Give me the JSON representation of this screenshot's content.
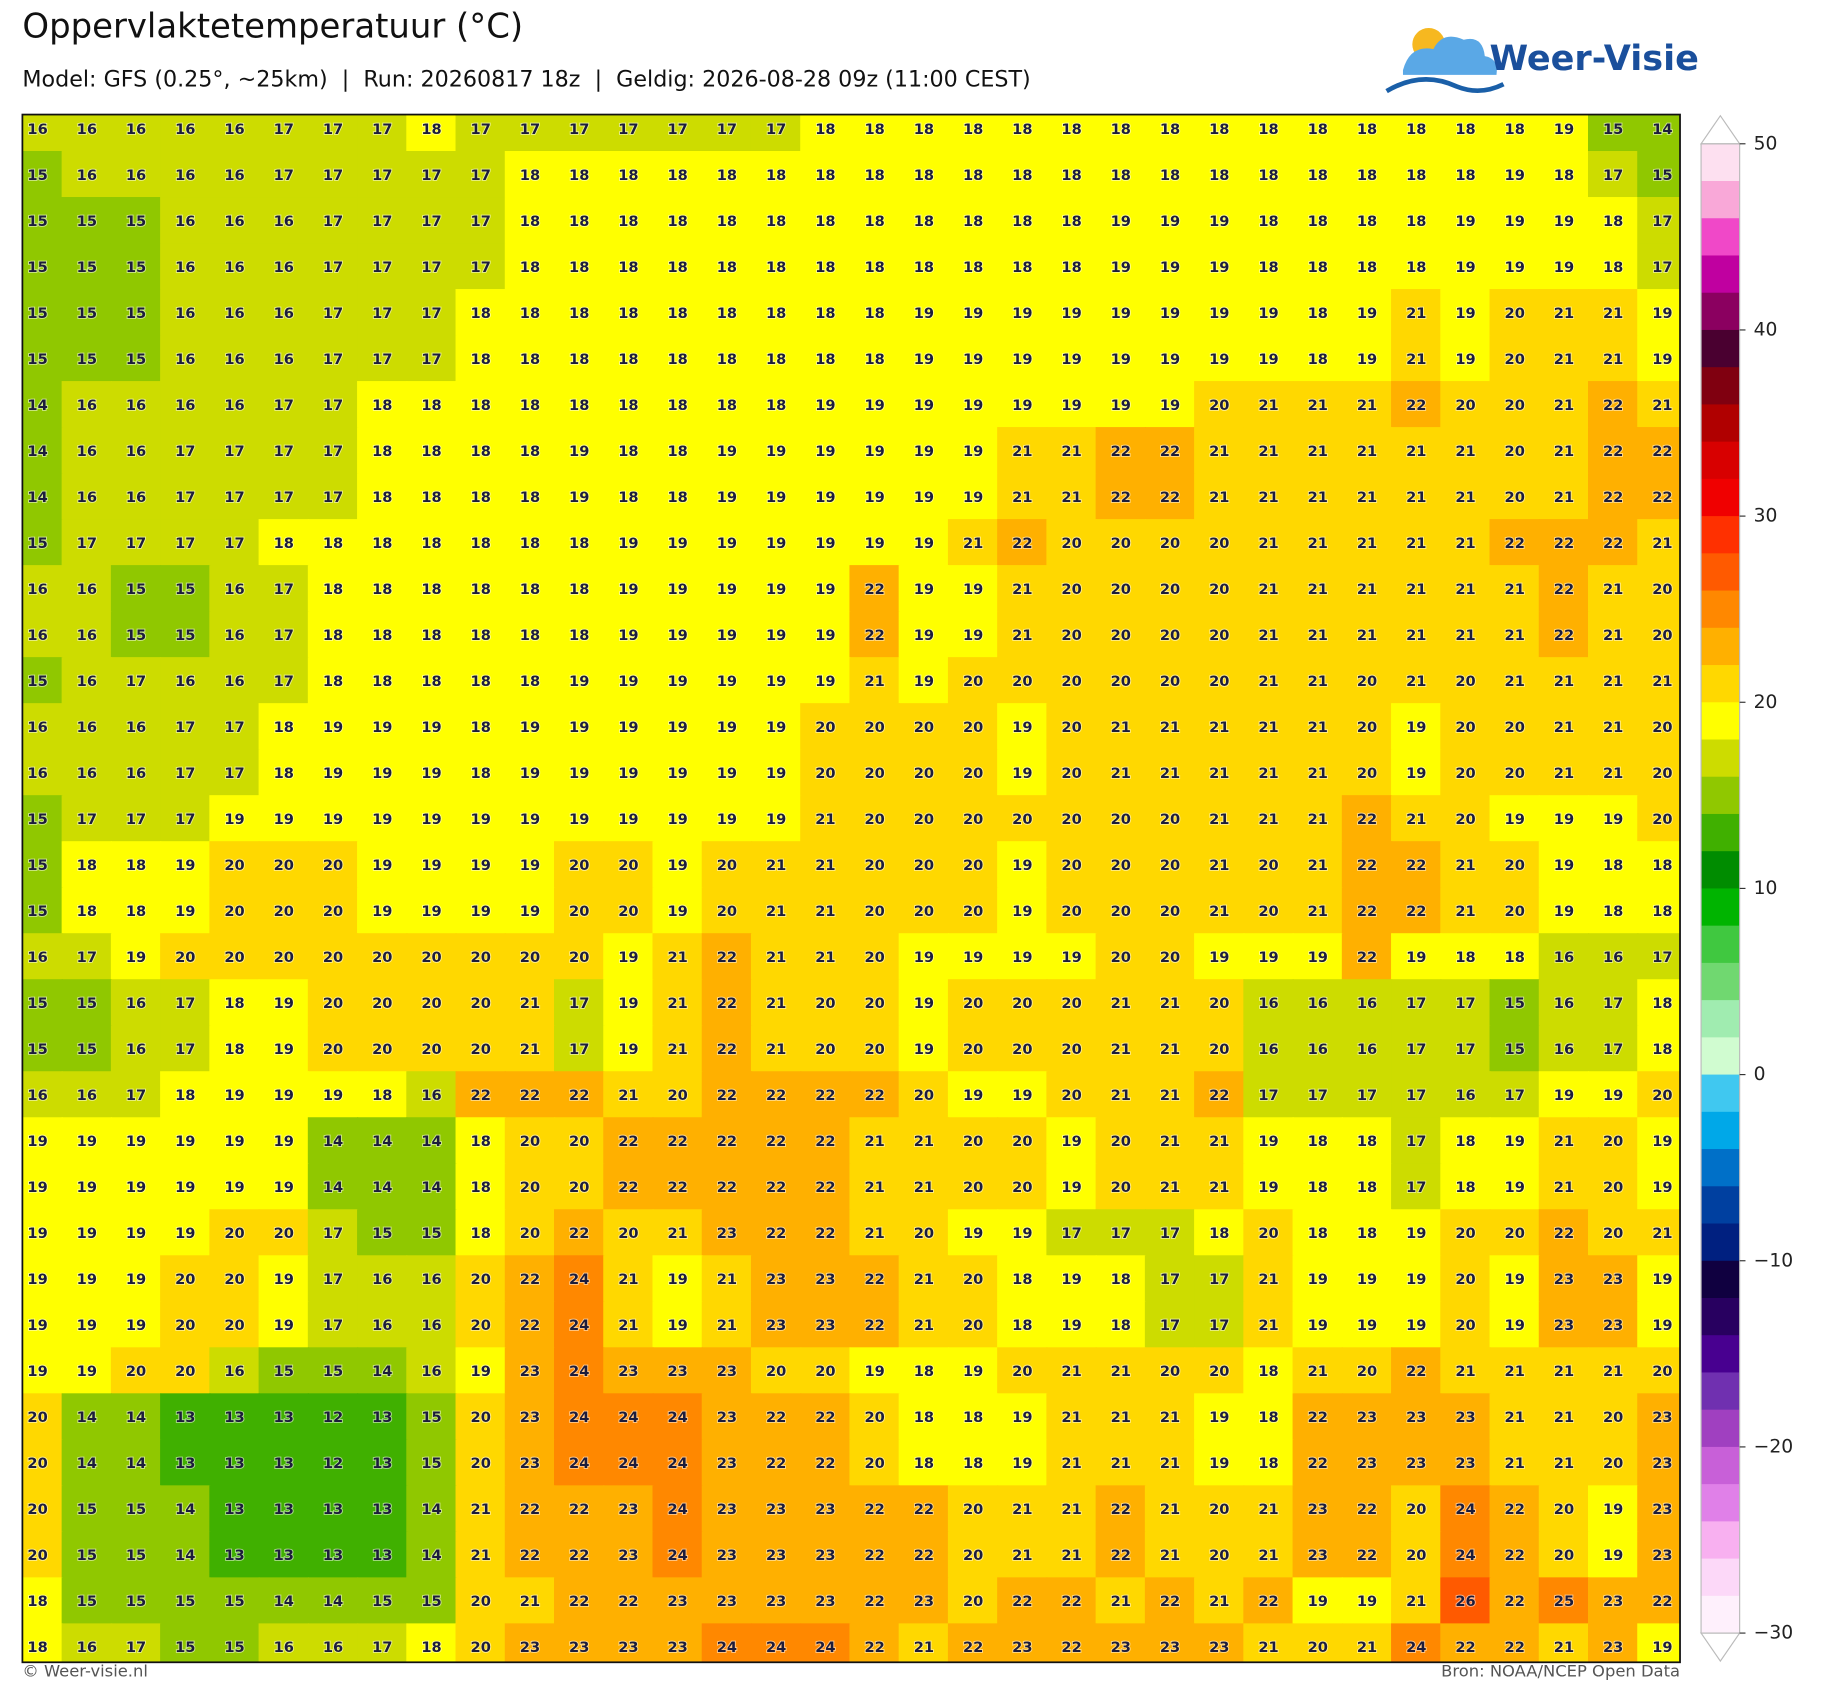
{
  "header": {
    "title": "Oppervlaktetemperatuur (°C)",
    "subtitle": "Model: GFS (0.25°, ~25km)  |  Run: 20260817 18z  |  Geldig: 2026-08-28 09z (11:00 CEST)",
    "logo": "Weer-Visie"
  },
  "map": {
    "values": [
      [
        16,
        16,
        16,
        16,
        16,
        17,
        17,
        17,
        18,
        17,
        17,
        17,
        17,
        17,
        17,
        17,
        18,
        18,
        18,
        18,
        18,
        18,
        18,
        18,
        18,
        18,
        18,
        18,
        18,
        18,
        18,
        19,
        15,
        14
      ],
      [
        15,
        16,
        16,
        16,
        16,
        17,
        17,
        17,
        17,
        17,
        18,
        18,
        18,
        18,
        18,
        18,
        18,
        18,
        18,
        18,
        18,
        18,
        18,
        18,
        18,
        18,
        18,
        18,
        18,
        18,
        19,
        18,
        17,
        15
      ],
      [
        15,
        15,
        15,
        16,
        16,
        16,
        17,
        17,
        17,
        17,
        18,
        18,
        18,
        18,
        18,
        18,
        18,
        18,
        18,
        18,
        18,
        18,
        19,
        19,
        19,
        18,
        18,
        18,
        18,
        19,
        19,
        19,
        18,
        17
      ],
      [
        15,
        15,
        15,
        16,
        16,
        16,
        17,
        17,
        17,
        17,
        18,
        18,
        18,
        18,
        18,
        18,
        18,
        18,
        18,
        18,
        18,
        18,
        19,
        19,
        19,
        18,
        18,
        18,
        18,
        19,
        19,
        19,
        18,
        17
      ],
      [
        15,
        15,
        15,
        16,
        16,
        16,
        17,
        17,
        17,
        18,
        18,
        18,
        18,
        18,
        18,
        18,
        18,
        18,
        19,
        19,
        19,
        19,
        19,
        19,
        19,
        19,
        18,
        19,
        21,
        19,
        20,
        21,
        21,
        19
      ],
      [
        15,
        15,
        15,
        16,
        16,
        16,
        17,
        17,
        17,
        18,
        18,
        18,
        18,
        18,
        18,
        18,
        18,
        18,
        19,
        19,
        19,
        19,
        19,
        19,
        19,
        19,
        18,
        19,
        21,
        19,
        20,
        21,
        21,
        19
      ],
      [
        14,
        16,
        16,
        16,
        16,
        17,
        17,
        18,
        18,
        18,
        18,
        18,
        18,
        18,
        18,
        18,
        19,
        19,
        19,
        19,
        19,
        19,
        19,
        19,
        20,
        21,
        21,
        21,
        22,
        20,
        20,
        21,
        22,
        21
      ],
      [
        14,
        16,
        16,
        17,
        17,
        17,
        17,
        18,
        18,
        18,
        18,
        19,
        18,
        18,
        19,
        19,
        19,
        19,
        19,
        19,
        21,
        21,
        22,
        22,
        21,
        21,
        21,
        21,
        21,
        21,
        20,
        21,
        22,
        22
      ],
      [
        14,
        16,
        16,
        17,
        17,
        17,
        17,
        18,
        18,
        18,
        18,
        19,
        18,
        18,
        19,
        19,
        19,
        19,
        19,
        19,
        21,
        21,
        22,
        22,
        21,
        21,
        21,
        21,
        21,
        21,
        20,
        21,
        22,
        22
      ],
      [
        15,
        17,
        17,
        17,
        17,
        18,
        18,
        18,
        18,
        18,
        18,
        18,
        19,
        19,
        19,
        19,
        19,
        19,
        19,
        21,
        22,
        20,
        20,
        20,
        20,
        21,
        21,
        21,
        21,
        21,
        22,
        22,
        22,
        21
      ],
      [
        16,
        16,
        15,
        15,
        16,
        17,
        18,
        18,
        18,
        18,
        18,
        18,
        19,
        19,
        19,
        19,
        19,
        22,
        19,
        19,
        21,
        20,
        20,
        20,
        20,
        21,
        21,
        21,
        21,
        21,
        21,
        22,
        21,
        20
      ],
      [
        16,
        16,
        15,
        15,
        16,
        17,
        18,
        18,
        18,
        18,
        18,
        18,
        19,
        19,
        19,
        19,
        19,
        22,
        19,
        19,
        21,
        20,
        20,
        20,
        20,
        21,
        21,
        21,
        21,
        21,
        21,
        22,
        21,
        20
      ],
      [
        15,
        16,
        17,
        16,
        16,
        17,
        18,
        18,
        18,
        18,
        18,
        19,
        19,
        19,
        19,
        19,
        19,
        21,
        19,
        20,
        20,
        20,
        20,
        20,
        20,
        21,
        21,
        20,
        21,
        20,
        21,
        21,
        21,
        21
      ],
      [
        16,
        16,
        16,
        17,
        17,
        18,
        19,
        19,
        19,
        18,
        19,
        19,
        19,
        19,
        19,
        19,
        20,
        20,
        20,
        20,
        19,
        20,
        21,
        21,
        21,
        21,
        21,
        20,
        19,
        20,
        20,
        21,
        21,
        20
      ],
      [
        16,
        16,
        16,
        17,
        17,
        18,
        19,
        19,
        19,
        18,
        19,
        19,
        19,
        19,
        19,
        19,
        20,
        20,
        20,
        20,
        19,
        20,
        21,
        21,
        21,
        21,
        21,
        20,
        19,
        20,
        20,
        21,
        21,
        20
      ],
      [
        15,
        17,
        17,
        17,
        19,
        19,
        19,
        19,
        19,
        19,
        19,
        19,
        19,
        19,
        19,
        19,
        21,
        20,
        20,
        20,
        20,
        20,
        20,
        20,
        21,
        21,
        21,
        22,
        21,
        20,
        19,
        19,
        19,
        20
      ],
      [
        15,
        18,
        18,
        19,
        20,
        20,
        20,
        19,
        19,
        19,
        19,
        20,
        20,
        19,
        20,
        21,
        21,
        20,
        20,
        20,
        19,
        20,
        20,
        20,
        21,
        20,
        21,
        22,
        22,
        21,
        20,
        19,
        18,
        18
      ],
      [
        15,
        18,
        18,
        19,
        20,
        20,
        20,
        19,
        19,
        19,
        19,
        20,
        20,
        19,
        20,
        21,
        21,
        20,
        20,
        20,
        19,
        20,
        20,
        20,
        21,
        20,
        21,
        22,
        22,
        21,
        20,
        19,
        18,
        18
      ],
      [
        16,
        17,
        19,
        20,
        20,
        20,
        20,
        20,
        20,
        20,
        20,
        20,
        19,
        21,
        22,
        21,
        21,
        20,
        19,
        19,
        19,
        19,
        20,
        20,
        19,
        19,
        19,
        22,
        19,
        18,
        18,
        16,
        16,
        17
      ],
      [
        15,
        15,
        16,
        17,
        18,
        19,
        20,
        20,
        20,
        20,
        21,
        17,
        19,
        21,
        22,
        21,
        20,
        20,
        19,
        20,
        20,
        20,
        21,
        21,
        20,
        16,
        16,
        16,
        17,
        17,
        15,
        16,
        17,
        18
      ],
      [
        15,
        15,
        16,
        17,
        18,
        19,
        20,
        20,
        20,
        20,
        21,
        17,
        19,
        21,
        22,
        21,
        20,
        20,
        19,
        20,
        20,
        20,
        21,
        21,
        20,
        16,
        16,
        16,
        17,
        17,
        15,
        16,
        17,
        18
      ],
      [
        16,
        16,
        17,
        18,
        19,
        19,
        19,
        18,
        16,
        22,
        22,
        22,
        21,
        20,
        22,
        22,
        22,
        22,
        20,
        19,
        19,
        20,
        21,
        21,
        22,
        17,
        17,
        17,
        17,
        16,
        17,
        19,
        19,
        20
      ],
      [
        19,
        19,
        19,
        19,
        19,
        19,
        14,
        14,
        14,
        18,
        20,
        20,
        22,
        22,
        22,
        22,
        22,
        21,
        21,
        20,
        20,
        19,
        20,
        21,
        21,
        19,
        18,
        18,
        17,
        18,
        19,
        21,
        20,
        19
      ],
      [
        19,
        19,
        19,
        19,
        19,
        19,
        14,
        14,
        14,
        18,
        20,
        20,
        22,
        22,
        22,
        22,
        22,
        21,
        21,
        20,
        20,
        19,
        20,
        21,
        21,
        19,
        18,
        18,
        17,
        18,
        19,
        21,
        20,
        19
      ],
      [
        19,
        19,
        19,
        19,
        20,
        20,
        17,
        15,
        15,
        18,
        20,
        22,
        20,
        21,
        23,
        22,
        22,
        21,
        20,
        19,
        19,
        17,
        17,
        17,
        18,
        20,
        18,
        18,
        19,
        20,
        20,
        22,
        20,
        21
      ],
      [
        19,
        19,
        19,
        20,
        20,
        19,
        17,
        16,
        16,
        20,
        22,
        24,
        21,
        19,
        21,
        23,
        23,
        22,
        21,
        20,
        18,
        19,
        18,
        17,
        17,
        21,
        19,
        19,
        19,
        20,
        19,
        23,
        23,
        19
      ],
      [
        19,
        19,
        19,
        20,
        20,
        19,
        17,
        16,
        16,
        20,
        22,
        24,
        21,
        19,
        21,
        23,
        23,
        22,
        21,
        20,
        18,
        19,
        18,
        17,
        17,
        21,
        19,
        19,
        19,
        20,
        19,
        23,
        23,
        19
      ],
      [
        19,
        19,
        20,
        20,
        16,
        15,
        15,
        14,
        16,
        19,
        23,
        24,
        23,
        23,
        23,
        20,
        20,
        19,
        18,
        19,
        20,
        21,
        21,
        20,
        20,
        18,
        21,
        20,
        22,
        21,
        21,
        21,
        21,
        20
      ],
      [
        20,
        14,
        14,
        13,
        13,
        13,
        12,
        13,
        15,
        20,
        23,
        24,
        24,
        24,
        23,
        22,
        22,
        20,
        18,
        18,
        19,
        21,
        21,
        21,
        19,
        18,
        22,
        23,
        23,
        23,
        21,
        21,
        20,
        23
      ],
      [
        20,
        14,
        14,
        13,
        13,
        13,
        12,
        13,
        15,
        20,
        23,
        24,
        24,
        24,
        23,
        22,
        22,
        20,
        18,
        18,
        19,
        21,
        21,
        21,
        19,
        18,
        22,
        23,
        23,
        23,
        21,
        21,
        20,
        23
      ],
      [
        20,
        15,
        15,
        14,
        13,
        13,
        13,
        13,
        14,
        21,
        22,
        22,
        23,
        24,
        23,
        23,
        23,
        22,
        22,
        20,
        21,
        21,
        22,
        21,
        20,
        21,
        23,
        22,
        20,
        24,
        22,
        20,
        19,
        23
      ],
      [
        20,
        15,
        15,
        14,
        13,
        13,
        13,
        13,
        14,
        21,
        22,
        22,
        23,
        24,
        23,
        23,
        23,
        22,
        22,
        20,
        21,
        21,
        22,
        21,
        20,
        21,
        23,
        22,
        20,
        24,
        22,
        20,
        19,
        23
      ],
      [
        18,
        15,
        15,
        15,
        15,
        14,
        14,
        15,
        15,
        20,
        21,
        22,
        22,
        23,
        23,
        23,
        23,
        22,
        23,
        20,
        22,
        22,
        21,
        22,
        21,
        22,
        19,
        19,
        21,
        26,
        22,
        25,
        23,
        22
      ],
      [
        18,
        16,
        17,
        15,
        15,
        16,
        16,
        17,
        18,
        20,
        23,
        23,
        23,
        23,
        24,
        24,
        24,
        22,
        21,
        22,
        23,
        22,
        23,
        23,
        23,
        21,
        20,
        21,
        24,
        22,
        22,
        21,
        23,
        19
      ]
    ]
  },
  "colorbar": {
    "lim": [
      -30,
      50
    ],
    "step": 2,
    "ticks": [
      50,
      40,
      30,
      20,
      10,
      0,
      {
        "value": -10,
        "label": "−10"
      },
      {
        "value": -20,
        "label": "−20"
      },
      {
        "value": -30,
        "label": "−30"
      }
    ],
    "colors": [
      "#fde0f0",
      "#f9a8d8",
      "#f048c8",
      "#c000a0",
      "#8b0060",
      "#4a0030",
      "#800010",
      "#b00000",
      "#d80000",
      "#f00000",
      "#ff3000",
      "#ff5a00",
      "#ff8800",
      "#ffb000",
      "#ffd800",
      "#ffff00",
      "#cddc00",
      "#90c800",
      "#40b000",
      "#008c00",
      "#00b400",
      "#40c840",
      "#70d870",
      "#a0ecb0",
      "#d0fcd0",
      "#40c8f0",
      "#00a8e8",
      "#0070c8",
      "#0040a0",
      "#002080",
      "#100040",
      "#280060",
      "#480090",
      "#7030b0",
      "#a040c0",
      "#c860d8",
      "#e080e8",
      "#f8b0f0",
      "#fcd8f8",
      "#fef0fc"
    ]
  },
  "footer": {
    "left": "© Weer-visie.nl",
    "right": "Bron: NOAA/NCEP Open Data"
  }
}
